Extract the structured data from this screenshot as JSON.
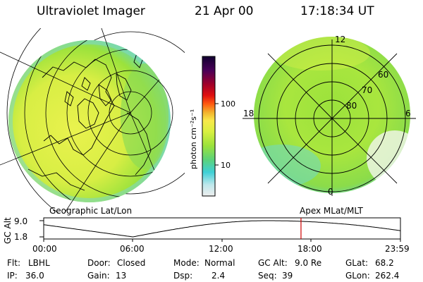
{
  "header": {
    "instrument": "Ultraviolet Imager",
    "date": "21 Apr 00",
    "time": "17:18:34 UT"
  },
  "colors": {
    "colorbar": [
      "#eeeeee",
      "#bfe8ec",
      "#3fd0d6",
      "#5bd27a",
      "#9be23c",
      "#d8f040",
      "#f8e94a",
      "#f3b12c",
      "#ff5a10",
      "#e01010",
      "#a0002a",
      "#4a0058",
      "#100030"
    ]
  },
  "colorbar": {
    "unit_label": "photon cm⁻²s⁻¹",
    "ticks": [
      "100",
      "10"
    ]
  },
  "geo_panel": {
    "label": "Geographic Lat/Lon"
  },
  "apex_panel": {
    "label": "Apex MLat/MLT",
    "mlt_labels": {
      "top": "12",
      "left": "18",
      "right": "6",
      "bottom": "0"
    },
    "mlat_labels": [
      "60",
      "70",
      "80"
    ]
  },
  "altitude_plot": {
    "ylabel": "GC Alt",
    "yticks": [
      "9.0",
      "1.8"
    ],
    "xticks": [
      "00:00",
      "06:00",
      "12:00",
      "18:00",
      "23:59"
    ],
    "current_time_hours": 17.31,
    "orbit": {
      "apogee_hours": 15.0,
      "perigee_hours": 6.0,
      "max_alt": 9.0,
      "min_alt": 1.8
    }
  },
  "status": {
    "flt_label": "Flt:",
    "flt_value": "LBHL",
    "ip_label": "IP:",
    "ip_value": "36.0",
    "door_label": "Door:",
    "door_value": "Closed",
    "gain_label": "Gain:",
    "gain_value": "13",
    "mode_label": "Mode:",
    "mode_value": "Normal",
    "dsp_label": "Dsp:",
    "dsp_value": "2.4",
    "gcalt_label": "GC Alt:",
    "gcalt_value": "9.0 Re",
    "seq_label": "Seq:",
    "seq_value": "39",
    "glat_label": "GLat:",
    "glat_value": "68.2",
    "glon_label": "GLon:",
    "glon_value": "262.4"
  }
}
